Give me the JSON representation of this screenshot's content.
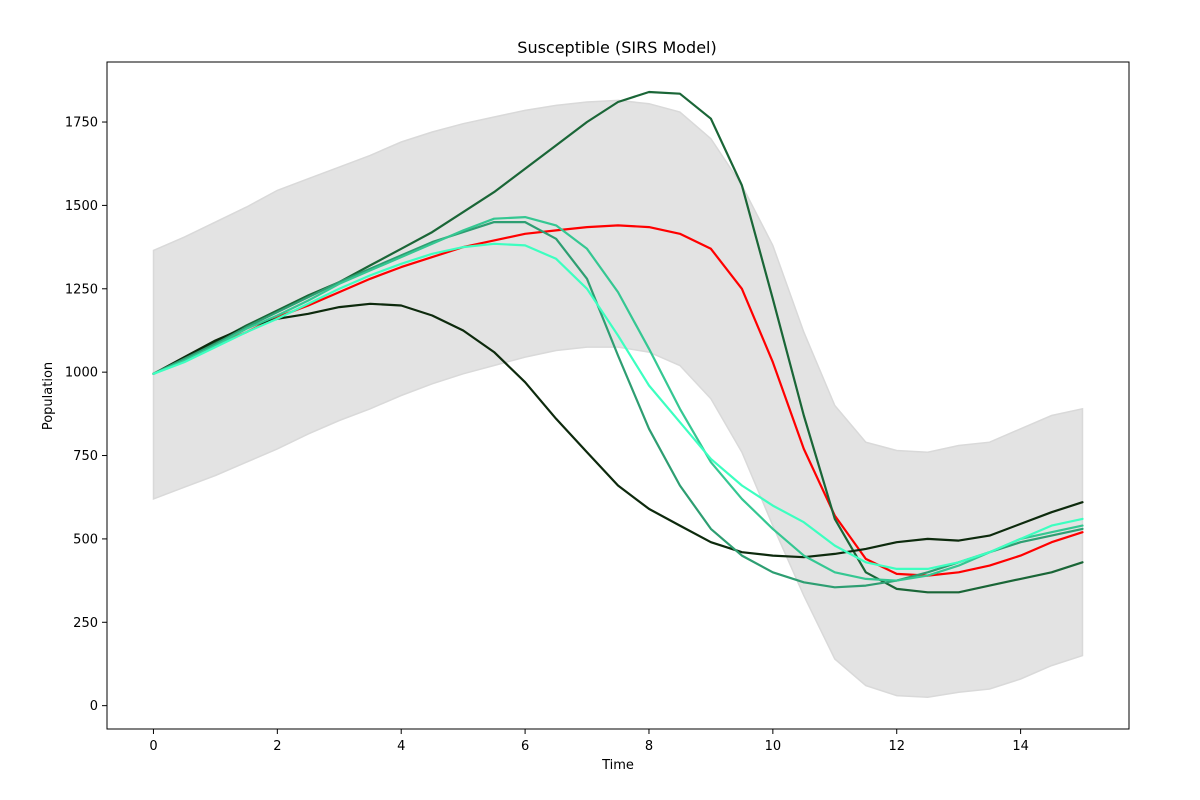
{
  "chart_data": {
    "type": "line",
    "title": "Susceptible (SIRS Model)",
    "xlabel": "Time",
    "ylabel": "Population",
    "xlim": [
      -0.75,
      15.75
    ],
    "ylim": [
      -70,
      1930
    ],
    "xticks": [
      0,
      2,
      4,
      6,
      8,
      10,
      12,
      14
    ],
    "yticks": [
      0,
      250,
      500,
      750,
      1000,
      1250,
      1500,
      1750
    ],
    "grid": false,
    "legend": "none",
    "band": {
      "color": "#e3e3e3",
      "x": [
        0,
        0.5,
        1,
        1.5,
        2,
        2.5,
        3,
        3.5,
        4,
        4.5,
        5,
        5.5,
        6,
        6.5,
        7,
        7.5,
        8,
        8.5,
        9,
        9.5,
        10,
        10.5,
        11,
        11.5,
        12,
        12.5,
        13,
        13.5,
        14,
        14.5,
        15
      ],
      "upper": [
        1365,
        1405,
        1450,
        1495,
        1545,
        1580,
        1615,
        1650,
        1690,
        1720,
        1745,
        1765,
        1785,
        1800,
        1810,
        1815,
        1805,
        1780,
        1700,
        1560,
        1380,
        1120,
        900,
        790,
        765,
        760,
        780,
        790,
        830,
        870,
        890
      ],
      "lower": [
        620,
        655,
        690,
        730,
        770,
        815,
        855,
        890,
        930,
        965,
        995,
        1020,
        1045,
        1065,
        1075,
        1075,
        1060,
        1020,
        920,
        760,
        540,
        330,
        140,
        60,
        30,
        25,
        40,
        50,
        80,
        120,
        150
      ]
    },
    "series": [
      {
        "color": "#ff0000",
        "x": [
          0,
          0.5,
          1,
          1.5,
          2,
          2.5,
          3,
          3.5,
          4,
          4.5,
          5,
          5.5,
          6,
          6.5,
          7,
          7.5,
          8,
          8.5,
          9,
          9.5,
          10,
          10.5,
          11,
          11.5,
          12,
          12.5,
          13,
          13.5,
          14,
          14.5,
          15
        ],
        "values": [
          995,
          1040,
          1080,
          1120,
          1165,
          1200,
          1240,
          1280,
          1315,
          1345,
          1375,
          1395,
          1415,
          1425,
          1435,
          1440,
          1435,
          1415,
          1370,
          1250,
          1030,
          770,
          570,
          440,
          395,
          390,
          400,
          420,
          450,
          490,
          520
        ]
      },
      {
        "color": "#1a6637",
        "x": [
          0,
          0.5,
          1,
          1.5,
          2,
          2.5,
          3,
          3.5,
          4,
          4.5,
          5,
          5.5,
          6,
          6.5,
          7,
          7.5,
          8,
          8.5,
          9,
          9.5,
          10,
          10.5,
          11,
          11.5,
          12,
          12.5,
          13,
          13.5,
          14,
          14.5,
          15
        ],
        "values": [
          995,
          1040,
          1090,
          1140,
          1185,
          1230,
          1270,
          1320,
          1370,
          1420,
          1480,
          1540,
          1610,
          1680,
          1750,
          1810,
          1840,
          1835,
          1760,
          1560,
          1220,
          870,
          560,
          400,
          350,
          340,
          340,
          360,
          380,
          400,
          430
        ]
      },
      {
        "color": "#0d2a0d",
        "x": [
          0,
          0.5,
          1,
          1.5,
          2,
          2.5,
          3,
          3.5,
          4,
          4.5,
          5,
          5.5,
          6,
          6.5,
          7,
          7.5,
          8,
          8.5,
          9,
          9.5,
          10,
          10.5,
          11,
          11.5,
          12,
          12.5,
          13,
          13.5,
          14,
          14.5,
          15
        ],
        "values": [
          995,
          1045,
          1095,
          1135,
          1160,
          1175,
          1195,
          1205,
          1200,
          1170,
          1125,
          1060,
          970,
          860,
          760,
          660,
          590,
          540,
          490,
          460,
          450,
          445,
          455,
          470,
          490,
          500,
          495,
          510,
          545,
          580,
          610
        ]
      },
      {
        "color": "#2e9e72",
        "x": [
          0,
          0.5,
          1,
          1.5,
          2,
          2.5,
          3,
          3.5,
          4,
          4.5,
          5,
          5.5,
          6,
          6.5,
          7,
          7.5,
          8,
          8.5,
          9,
          9.5,
          10,
          10.5,
          11,
          11.5,
          12,
          12.5,
          13,
          13.5,
          14,
          14.5,
          15
        ],
        "values": [
          995,
          1040,
          1085,
          1135,
          1180,
          1225,
          1270,
          1310,
          1350,
          1390,
          1420,
          1450,
          1450,
          1400,
          1280,
          1050,
          830,
          660,
          530,
          450,
          400,
          370,
          355,
          360,
          375,
          400,
          430,
          460,
          490,
          510,
          530
        ]
      },
      {
        "color": "#35c792",
        "x": [
          0,
          0.5,
          1,
          1.5,
          2,
          2.5,
          3,
          3.5,
          4,
          4.5,
          5,
          5.5,
          6,
          6.5,
          7,
          7.5,
          8,
          8.5,
          9,
          9.5,
          10,
          10.5,
          11,
          11.5,
          12,
          12.5,
          13,
          13.5,
          14,
          14.5,
          15
        ],
        "values": [
          995,
          1035,
          1080,
          1130,
          1170,
          1215,
          1265,
          1305,
          1345,
          1385,
          1425,
          1460,
          1465,
          1440,
          1370,
          1240,
          1070,
          890,
          730,
          620,
          530,
          450,
          400,
          380,
          375,
          390,
          420,
          460,
          500,
          520,
          540
        ]
      },
      {
        "color": "#3dffc0",
        "x": [
          0,
          0.5,
          1,
          1.5,
          2,
          2.5,
          3,
          3.5,
          4,
          4.5,
          5,
          5.5,
          6,
          6.5,
          7,
          7.5,
          8,
          8.5,
          9,
          9.5,
          10,
          10.5,
          11,
          11.5,
          12,
          12.5,
          13,
          13.5,
          14,
          14.5,
          15
        ],
        "values": [
          995,
          1030,
          1075,
          1120,
          1160,
          1205,
          1250,
          1290,
          1325,
          1355,
          1375,
          1385,
          1380,
          1340,
          1250,
          1110,
          960,
          850,
          740,
          660,
          600,
          550,
          480,
          430,
          410,
          410,
          430,
          460,
          500,
          540,
          560
        ]
      }
    ]
  }
}
